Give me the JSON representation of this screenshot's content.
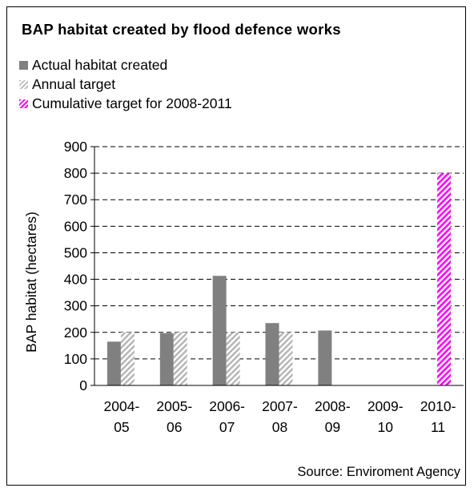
{
  "chart_data": {
    "type": "bar",
    "title": "BAP habitat created by flood defence works",
    "ylabel": "BAP habitat (hectares)",
    "xlabel": "",
    "ylim": [
      0,
      900
    ],
    "yticks": [
      0,
      100,
      200,
      300,
      400,
      500,
      600,
      700,
      800,
      900
    ],
    "grid": true,
    "legend_position": "top-left",
    "categories": [
      [
        "2004-",
        "05"
      ],
      [
        "2005-",
        "06"
      ],
      [
        "2006-",
        "07"
      ],
      [
        "2007-",
        "08"
      ],
      [
        "2008-",
        "09"
      ],
      [
        "2009-",
        "10"
      ],
      [
        "2010-",
        "11"
      ]
    ],
    "series": [
      {
        "name": "Actual habitat created",
        "values": [
          165,
          197,
          413,
          235,
          207,
          null,
          null
        ],
        "color": "#808080",
        "pattern": "solid"
      },
      {
        "name": "Annual target",
        "values": [
          200,
          200,
          200,
          200,
          null,
          null,
          null
        ],
        "color": "#c0c0c0",
        "pattern": "hatched"
      },
      {
        "name": "Cumulative target for 2008-2011",
        "values": [
          null,
          null,
          null,
          null,
          null,
          null,
          800
        ],
        "color": "#ff00ff",
        "pattern": "hatched"
      }
    ],
    "source": "Source: Enviroment Agency"
  }
}
